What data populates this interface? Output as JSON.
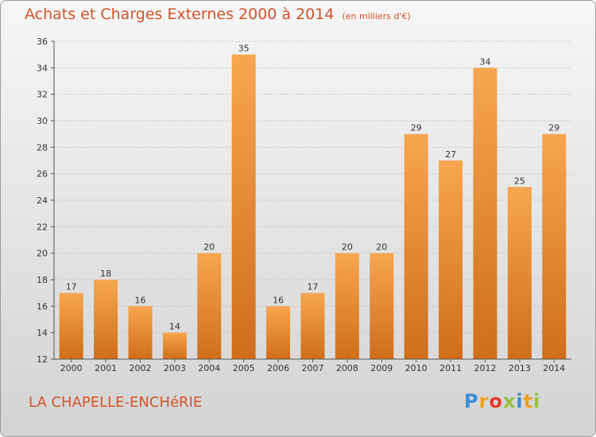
{
  "title": "Achats et Charges Externes 2000 à 2014",
  "unit": "(en milliers d'€)",
  "commune": "LA CHAPELLE-ENCHéRIE",
  "logo": {
    "letters": [
      "P",
      "r",
      "o",
      "x",
      "i",
      "t",
      "i"
    ],
    "colors": [
      "#3a8fd6",
      "#f0a020",
      "#e23a2a",
      "#9ac03a",
      "#3a8fd6",
      "#f0a020",
      "#9ac03a"
    ]
  },
  "chart_data": {
    "type": "bar",
    "title": "Achats et Charges Externes 2000 à 2014",
    "categories": [
      "2000",
      "2001",
      "2002",
      "2003",
      "2004",
      "2005",
      "2006",
      "2007",
      "2008",
      "2009",
      "2010",
      "2011",
      "2012",
      "2013",
      "2014"
    ],
    "values": [
      17,
      18,
      16,
      14,
      20,
      35,
      16,
      17,
      20,
      20,
      29,
      27,
      34,
      25,
      29
    ],
    "ylim": [
      12,
      36
    ],
    "yticks": [
      12,
      14,
      16,
      18,
      20,
      22,
      24,
      26,
      28,
      30,
      32,
      34,
      36
    ],
    "grid": true,
    "bar_color": "#f0903a"
  }
}
